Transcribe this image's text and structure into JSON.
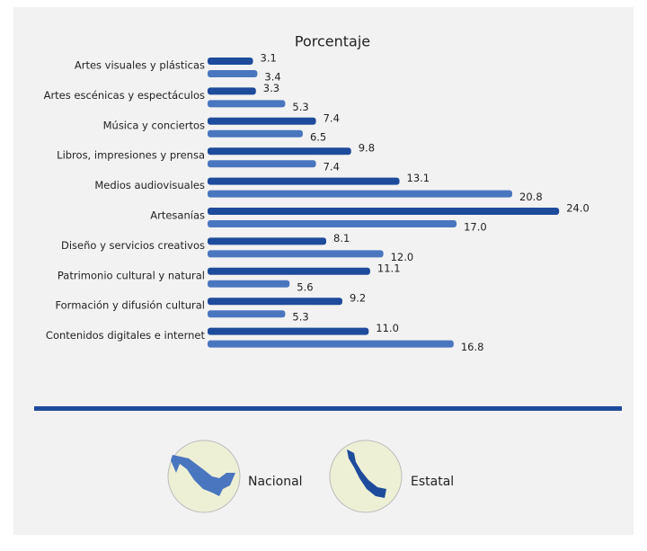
{
  "chart_data": {
    "type": "bar",
    "orientation": "horizontal",
    "title": "Porcentaje",
    "categories": [
      "Artes visuales y plásticas",
      "Artes escénicas y espectáculos",
      "Música y conciertos",
      "Libros, impresiones y prensa",
      "Medios audiovisuales",
      "Artesanías",
      "Diseño y servicios creativos",
      "Patrimonio cultural y natural",
      "Formación y difusión cultural",
      "Contenidos digitales e internet"
    ],
    "series": [
      {
        "name": "Nacional",
        "color": "#4a76bf",
        "values": [
          3.4,
          5.3,
          6.5,
          7.4,
          20.8,
          17.0,
          12.0,
          5.6,
          5.3,
          16.8
        ],
        "value_labels": [
          "3.4",
          "5.3",
          "6.5",
          "7.4",
          "20.8",
          "17.0",
          "12.0",
          "5.6",
          "5.3",
          "16.8"
        ]
      },
      {
        "name": "Estatal",
        "color": "#1e4b9b",
        "values": [
          3.1,
          3.3,
          7.4,
          9.8,
          13.1,
          24.0,
          8.1,
          11.1,
          9.2,
          11.0
        ],
        "value_labels": [
          "3.1",
          "3.3",
          "7.4",
          "9.8",
          "13.1",
          "24.0",
          "8.1",
          "11.1",
          "9.2",
          "11.0"
        ]
      }
    ]
  }
}
